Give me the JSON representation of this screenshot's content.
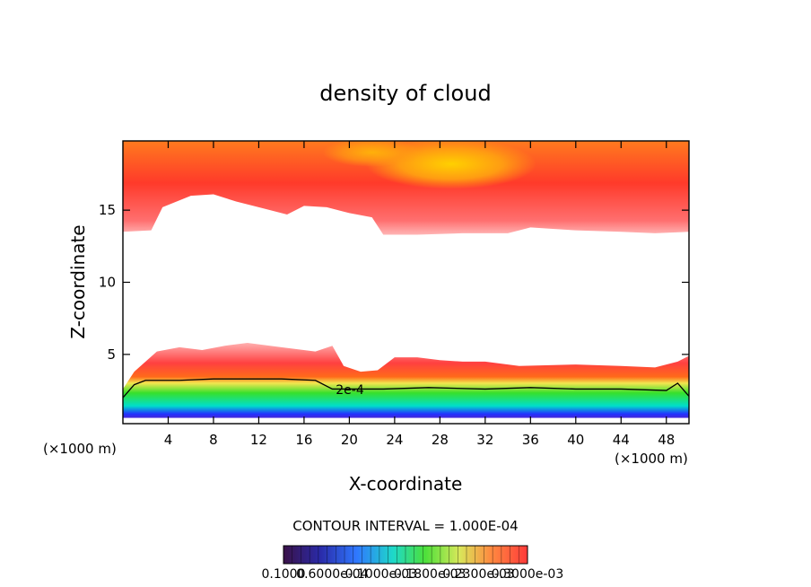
{
  "chart_data": {
    "type": "heatmap",
    "title": "density of cloud",
    "xlabel": "X-coordinate",
    "ylabel": "Z-coordinate",
    "x_unit": "(×1000 m)",
    "y_unit": "(×1000 m)",
    "xlim": [
      0,
      50
    ],
    "ylim": [
      0.2,
      19.8
    ],
    "x_ticks": [
      4,
      8,
      12,
      16,
      20,
      24,
      28,
      32,
      36,
      40,
      44,
      48
    ],
    "y_ticks": [
      5,
      10,
      15
    ],
    "contour_interval_text": "CONTOUR INTERVAL = 1.000E-04",
    "contour_label": "2e-4",
    "colorbar_labels": [
      "0.1000",
      "0.6000e-04",
      "0.1000e-03",
      "0.1800e-03",
      "0.2300e-03",
      "0.3000e-03"
    ],
    "colors": {
      "upper_peak": "#ffb000",
      "upper_mid": "#ff5a2a",
      "upper_edge": "#ff9a9a",
      "low_red": "#ff3030",
      "low_yellow": "#f4e64a",
      "low_green": "#28e02a",
      "low_cyan": "#00e0d0",
      "low_blue": "#2030ff",
      "low_purple": "#7a1aa0",
      "contour": "#000000"
    },
    "layers": {
      "upper_top_boundary_z": [
        [
          0,
          13.5
        ],
        [
          2.5,
          13.6
        ],
        [
          3.5,
          15.2
        ],
        [
          6,
          16.0
        ],
        [
          8,
          16.1
        ],
        [
          10,
          15.6
        ],
        [
          12.5,
          15.1
        ],
        [
          14.5,
          14.7
        ],
        [
          16,
          15.3
        ],
        [
          18,
          15.2
        ],
        [
          20,
          14.8
        ],
        [
          22,
          14.5
        ],
        [
          23,
          13.3
        ],
        [
          26,
          13.3
        ],
        [
          30,
          13.4
        ],
        [
          34,
          13.4
        ],
        [
          36,
          13.8
        ],
        [
          40,
          13.6
        ],
        [
          44,
          13.5
        ],
        [
          47,
          13.4
        ],
        [
          50,
          13.5
        ]
      ],
      "lower_top_boundary_z": [
        [
          0,
          2.6
        ],
        [
          1,
          3.8
        ],
        [
          2,
          4.5
        ],
        [
          3,
          5.2
        ],
        [
          5,
          5.5
        ],
        [
          7,
          5.3
        ],
        [
          9,
          5.6
        ],
        [
          11,
          5.8
        ],
        [
          14,
          5.5
        ],
        [
          17,
          5.2
        ],
        [
          18.5,
          5.6
        ],
        [
          19.5,
          4.2
        ],
        [
          21,
          3.8
        ],
        [
          22.5,
          3.9
        ],
        [
          24,
          4.8
        ],
        [
          26,
          4.8
        ],
        [
          28,
          4.6
        ],
        [
          30,
          4.5
        ],
        [
          32,
          4.5
        ],
        [
          35,
          4.2
        ],
        [
          40,
          4.3
        ],
        [
          44,
          4.2
        ],
        [
          47,
          4.1
        ],
        [
          49,
          4.5
        ],
        [
          50,
          4.9
        ]
      ],
      "contour_2e4_z": [
        [
          0,
          2.0
        ],
        [
          1,
          2.9
        ],
        [
          2,
          3.2
        ],
        [
          5,
          3.2
        ],
        [
          8,
          3.3
        ],
        [
          11,
          3.3
        ],
        [
          14,
          3.3
        ],
        [
          17,
          3.2
        ],
        [
          18.5,
          2.6
        ],
        [
          20,
          2.6
        ],
        [
          23,
          2.6
        ],
        [
          27,
          2.7
        ],
        [
          32,
          2.6
        ],
        [
          36,
          2.7
        ],
        [
          40,
          2.6
        ],
        [
          44,
          2.6
        ],
        [
          48,
          2.5
        ],
        [
          49,
          3.0
        ],
        [
          50,
          2.1
        ]
      ],
      "lower_bottom_z": 0.6
    }
  }
}
